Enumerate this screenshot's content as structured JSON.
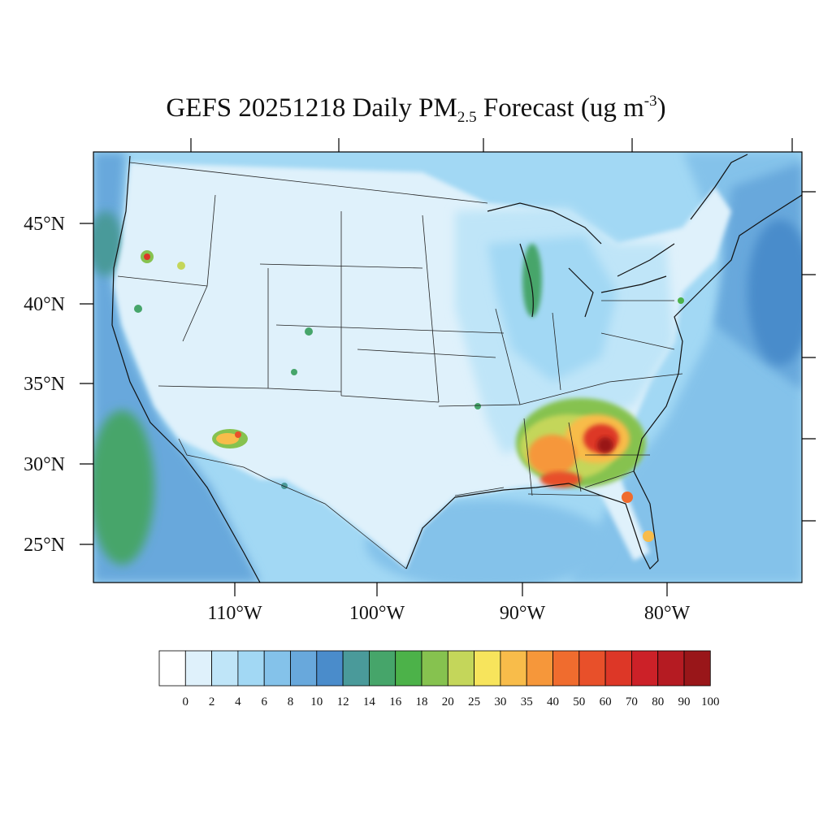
{
  "title": {
    "prefix": "GEFS 20251218 Daily PM",
    "subscript": "2.5",
    "middle": " Forecast (ug m",
    "superscript": "-3",
    "suffix": ")"
  },
  "axes": {
    "lat_labels": [
      "45°N",
      "40°N",
      "35°N",
      "30°N",
      "25°N"
    ],
    "lon_labels": [
      "110°W",
      "100°W",
      "90°W",
      "80°W"
    ]
  },
  "colorbar": {
    "labels": [
      "0",
      "2",
      "4",
      "6",
      "8",
      "10",
      "12",
      "14",
      "16",
      "18",
      "20",
      "25",
      "30",
      "35",
      "40",
      "50",
      "60",
      "70",
      "80",
      "90",
      "100"
    ],
    "colors": [
      "#ffffff",
      "#dff1fb",
      "#bfe5f8",
      "#a2d8f4",
      "#84c2ea",
      "#68a8dc",
      "#4a8ccb",
      "#4a9a9a",
      "#46a56a",
      "#4cb249",
      "#86c24f",
      "#c4d65a",
      "#f7e45c",
      "#f8bc4a",
      "#f6973a",
      "#f06c2e",
      "#e8502a",
      "#dd3727",
      "#cc2128",
      "#b51b22",
      "#991619"
    ]
  }
}
